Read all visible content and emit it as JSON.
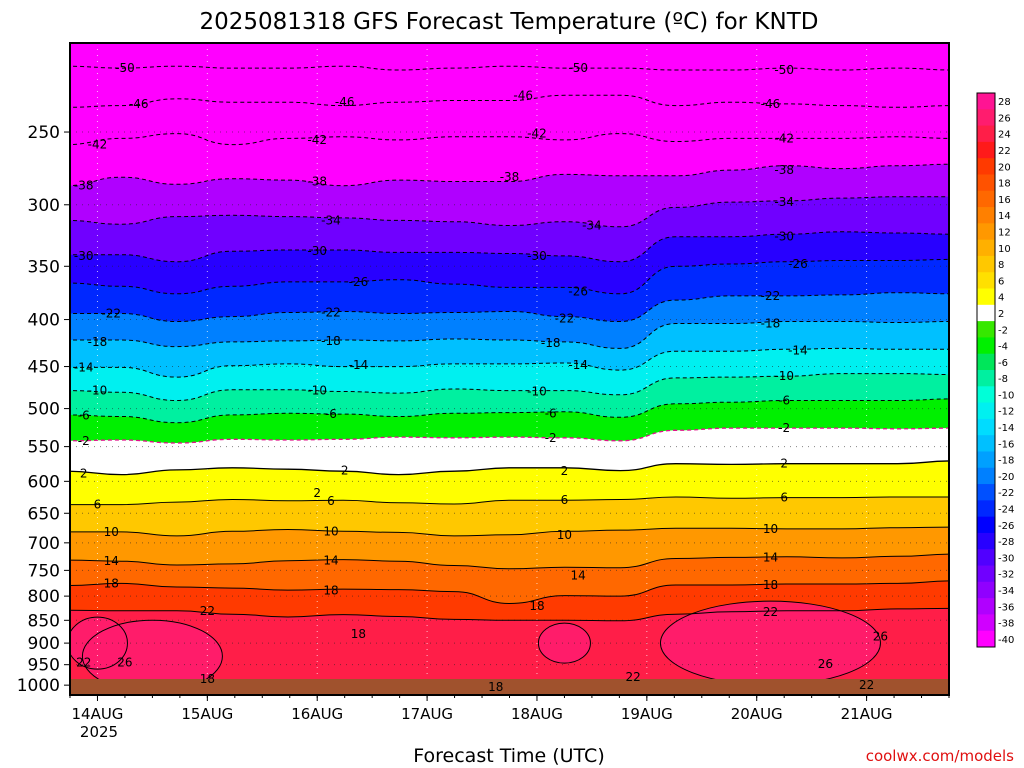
{
  "chart_data": {
    "type": "heatmap",
    "title": "2025081318 GFS Forecast Temperature (ºC) for KNTD",
    "xlabel": "Forecast Time (UTC)",
    "ylabel": "",
    "x_ticks": [
      "14AUG",
      "15AUG",
      "16AUG",
      "17AUG",
      "18AUG",
      "19AUG",
      "20AUG",
      "21AUG"
    ],
    "x_year": "2025",
    "x_range": [
      "2025-08-13T18:00",
      "2025-08-21T18:00"
    ],
    "y_ticks": [
      250,
      300,
      350,
      400,
      450,
      500,
      550,
      600,
      650,
      700,
      750,
      800,
      850,
      900,
      950,
      1000
    ],
    "y_range": [
      200,
      1025
    ],
    "y_scale": "log-pressure",
    "grid": true,
    "credit": "coolwx.com/models",
    "colorbar": {
      "placement": "right",
      "labels": [
        28,
        26,
        24,
        22,
        20,
        18,
        16,
        14,
        12,
        10,
        8,
        6,
        4,
        2,
        -2,
        -4,
        -6,
        -8,
        -10,
        -12,
        -14,
        -16,
        -18,
        -20,
        -22,
        -24,
        -26,
        -28,
        -30,
        -32,
        -34,
        -36,
        -38,
        -40
      ],
      "colors": [
        "#ff1493",
        "#ff1c6e",
        "#ff1e48",
        "#ff1a1a",
        "#ff3a00",
        "#ff5200",
        "#ff6800",
        "#ff8000",
        "#ff9800",
        "#ffb000",
        "#ffc800",
        "#ffe000",
        "#ffff00",
        "#ffffff",
        "#36e800",
        "#00f000",
        "#00e65a",
        "#00f0a0",
        "#00ffd8",
        "#00f0f0",
        "#00dcff",
        "#00c0ff",
        "#00a0ff",
        "#0080ff",
        "#0050ff",
        "#0028ff",
        "#0000ff",
        "#2800ff",
        "#5000ff",
        "#7000ff",
        "#9000ff",
        "#b000ff",
        "#d000ff",
        "#ff00ff"
      ]
    },
    "isotherms": [
      {
        "value": -50,
        "levels": [
          212,
          213,
          212,
          213,
          213,
          212,
          214,
          213,
          212,
          213,
          213,
          214,
          214,
          213,
          214,
          213,
          214
        ]
      },
      {
        "value": -46,
        "levels": [
          235,
          234,
          230,
          232,
          232,
          234,
          232,
          231,
          231,
          228,
          228,
          234,
          232,
          233,
          234,
          235,
          234
        ]
      },
      {
        "value": -42,
        "levels": [
          258,
          254,
          251,
          258,
          254,
          253,
          255,
          253,
          253,
          255,
          251,
          256,
          254,
          254,
          254,
          253,
          254
        ]
      },
      {
        "value": -38,
        "levels": [
          286,
          280,
          285,
          281,
          282,
          286,
          282,
          283,
          283,
          278,
          279,
          279,
          275,
          272,
          274,
          272,
          271
        ]
      },
      {
        "value": -34,
        "levels": [
          312,
          315,
          309,
          308,
          309,
          310,
          312,
          313,
          316,
          313,
          317,
          302,
          298,
          297,
          295,
          294,
          294
        ]
      },
      {
        "value": -30,
        "levels": [
          340,
          340,
          346,
          337,
          336,
          336,
          338,
          338,
          339,
          341,
          346,
          325,
          325,
          323,
          321,
          322,
          323
        ]
      },
      {
        "value": -26,
        "levels": [
          365,
          368,
          375,
          368,
          364,
          364,
          362,
          366,
          369,
          369,
          375,
          350,
          348,
          346,
          345,
          345,
          344
        ]
      },
      {
        "value": -22,
        "levels": [
          394,
          394,
          402,
          397,
          393,
          392,
          394,
          393,
          392,
          397,
          402,
          381,
          377,
          377,
          376,
          374,
          375
        ]
      },
      {
        "value": -18,
        "levels": [
          421,
          421,
          428,
          423,
          422,
          421,
          422,
          420,
          421,
          423,
          430,
          404,
          404,
          402,
          402,
          403,
          402
        ]
      },
      {
        "value": -14,
        "levels": [
          451,
          451,
          462,
          449,
          447,
          450,
          450,
          447,
          447,
          446,
          454,
          433,
          433,
          431,
          430,
          431,
          431
        ]
      },
      {
        "value": -10,
        "levels": [
          478,
          480,
          490,
          477,
          477,
          479,
          481,
          476,
          478,
          478,
          483,
          463,
          462,
          461,
          458,
          458,
          459
        ]
      },
      {
        "value": -6,
        "levels": [
          508,
          510,
          518,
          508,
          506,
          507,
          510,
          506,
          505,
          504,
          511,
          494,
          492,
          490,
          490,
          490,
          488
        ]
      },
      {
        "value": -2,
        "levels": [
          542,
          541,
          545,
          540,
          541,
          540,
          537,
          538,
          537,
          538,
          542,
          528,
          525,
          525,
          525,
          526,
          525
        ]
      },
      {
        "value": 2,
        "levels": [
          585,
          590,
          583,
          580,
          582,
          585,
          590,
          585,
          580,
          580,
          584,
          574,
          575,
          574,
          574,
          574,
          570
        ]
      },
      {
        "value": 6,
        "levels": [
          636,
          636,
          632,
          628,
          630,
          629,
          633,
          635,
          629,
          629,
          628,
          624,
          626,
          625,
          625,
          624,
          624
        ]
      },
      {
        "value": 10,
        "levels": [
          681,
          681,
          688,
          680,
          677,
          680,
          682,
          688,
          686,
          680,
          678,
          675,
          675,
          676,
          676,
          674,
          673
        ]
      },
      {
        "value": 14,
        "levels": [
          731,
          733,
          740,
          738,
          732,
          730,
          733,
          741,
          747,
          744,
          745,
          728,
          726,
          725,
          727,
          724,
          720
        ]
      },
      {
        "value": 18,
        "levels": [
          779,
          775,
          782,
          784,
          788,
          786,
          787,
          791,
          815,
          799,
          800,
          778,
          778,
          776,
          776,
          775,
          770
        ]
      },
      {
        "value": 22,
        "levels": [
          829,
          830,
          830,
          837,
          843,
          838,
          842,
          848,
          850,
          850,
          851,
          837,
          832,
          830,
          830,
          826,
          825
        ]
      }
    ],
    "contour_labels": [
      {
        "text": "-50",
        "x": "2025-08-14T06:00",
        "y": 213
      },
      {
        "text": "-50",
        "x": "2025-08-18T09:00",
        "y": 213
      },
      {
        "text": "-50",
        "x": "2025-08-20T06:00",
        "y": 214
      },
      {
        "text": "-46",
        "x": "2025-08-14T09:00",
        "y": 233
      },
      {
        "text": "-46",
        "x": "2025-08-16T06:00",
        "y": 232
      },
      {
        "text": "-46",
        "x": "2025-08-17T21:00",
        "y": 228
      },
      {
        "text": "-46",
        "x": "2025-08-20T03:00",
        "y": 233
      },
      {
        "text": "-42",
        "x": "2025-08-14T00:00",
        "y": 258
      },
      {
        "text": "-42",
        "x": "2025-08-16T00:00",
        "y": 255
      },
      {
        "text": "-42",
        "x": "2025-08-18T00:00",
        "y": 251
      },
      {
        "text": "-42",
        "x": "2025-08-20T06:00",
        "y": 254
      },
      {
        "text": "-38",
        "x": "2025-08-13T21:00",
        "y": 286
      },
      {
        "text": "-38",
        "x": "2025-08-16T00:00",
        "y": 283
      },
      {
        "text": "-38",
        "x": "2025-08-17T18:00",
        "y": 280
      },
      {
        "text": "-38",
        "x": "2025-08-20T06:00",
        "y": 275
      },
      {
        "text": "-34",
        "x": "2025-08-16T03:00",
        "y": 312
      },
      {
        "text": "-34",
        "x": "2025-08-18T12:00",
        "y": 316
      },
      {
        "text": "-34",
        "x": "2025-08-20T06:00",
        "y": 298
      },
      {
        "text": "-30",
        "x": "2025-08-13T21:00",
        "y": 341
      },
      {
        "text": "-30",
        "x": "2025-08-16T00:00",
        "y": 337
      },
      {
        "text": "-30",
        "x": "2025-08-18T00:00",
        "y": 341
      },
      {
        "text": "-30",
        "x": "2025-08-20T06:00",
        "y": 325
      },
      {
        "text": "-26",
        "x": "2025-08-16T09:00",
        "y": 364
      },
      {
        "text": "-26",
        "x": "2025-08-18T09:00",
        "y": 373
      },
      {
        "text": "-26",
        "x": "2025-08-20T09:00",
        "y": 348
      },
      {
        "text": "-22",
        "x": "2025-08-14T03:00",
        "y": 394
      },
      {
        "text": "-22",
        "x": "2025-08-16T03:00",
        "y": 393
      },
      {
        "text": "-22",
        "x": "2025-08-18T06:00",
        "y": 399
      },
      {
        "text": "-22",
        "x": "2025-08-20T03:00",
        "y": 377
      },
      {
        "text": "-18",
        "x": "2025-08-14T00:00",
        "y": 423
      },
      {
        "text": "-18",
        "x": "2025-08-16T03:00",
        "y": 422
      },
      {
        "text": "-18",
        "x": "2025-08-18T03:00",
        "y": 424
      },
      {
        "text": "-18",
        "x": "2025-08-20T03:00",
        "y": 404
      },
      {
        "text": "-14",
        "x": "2025-08-13T21:00",
        "y": 451
      },
      {
        "text": "-14",
        "x": "2025-08-16T09:00",
        "y": 448
      },
      {
        "text": "-14",
        "x": "2025-08-18T09:00",
        "y": 448
      },
      {
        "text": "-14",
        "x": "2025-08-20T09:00",
        "y": 432
      },
      {
        "text": "-10",
        "x": "2025-08-14T00:00",
        "y": 478
      },
      {
        "text": "-10",
        "x": "2025-08-16T00:00",
        "y": 478
      },
      {
        "text": "-10",
        "x": "2025-08-18T00:00",
        "y": 479
      },
      {
        "text": "-10",
        "x": "2025-08-20T06:00",
        "y": 461
      },
      {
        "text": "-6",
        "x": "2025-08-13T21:00",
        "y": 509
      },
      {
        "text": "-6",
        "x": "2025-08-16T03:00",
        "y": 507
      },
      {
        "text": "-6",
        "x": "2025-08-18T03:00",
        "y": 506
      },
      {
        "text": "-6",
        "x": "2025-08-20T06:00",
        "y": 490
      },
      {
        "text": "-2",
        "x": "2025-08-13T21:00",
        "y": 542
      },
      {
        "text": "-2",
        "x": "2025-08-18T03:00",
        "y": 538
      },
      {
        "text": "-2",
        "x": "2025-08-20T06:00",
        "y": 525
      },
      {
        "text": "2",
        "x": "2025-08-13T21:00",
        "y": 588
      },
      {
        "text": "2",
        "x": "2025-08-16T06:00",
        "y": 584
      },
      {
        "text": "2",
        "x": "2025-08-16T00:00",
        "y": 618
      },
      {
        "text": "2",
        "x": "2025-08-18T06:00",
        "y": 585
      },
      {
        "text": "2",
        "x": "2025-08-20T06:00",
        "y": 574
      },
      {
        "text": "6",
        "x": "2025-08-14T00:00",
        "y": 636
      },
      {
        "text": "6",
        "x": "2025-08-16T03:00",
        "y": 630
      },
      {
        "text": "6",
        "x": "2025-08-18T06:00",
        "y": 629
      },
      {
        "text": "6",
        "x": "2025-08-20T06:00",
        "y": 625
      },
      {
        "text": "10",
        "x": "2025-08-14T03:00",
        "y": 681
      },
      {
        "text": "10",
        "x": "2025-08-16T03:00",
        "y": 680
      },
      {
        "text": "10",
        "x": "2025-08-18T06:00",
        "y": 686
      },
      {
        "text": "10",
        "x": "2025-08-20T03:00",
        "y": 676
      },
      {
        "text": "14",
        "x": "2025-08-14T03:00",
        "y": 733
      },
      {
        "text": "14",
        "x": "2025-08-16T03:00",
        "y": 732
      },
      {
        "text": "14",
        "x": "2025-08-18T09:00",
        "y": 760
      },
      {
        "text": "14",
        "x": "2025-08-20T03:00",
        "y": 726
      },
      {
        "text": "18",
        "x": "2025-08-14T03:00",
        "y": 775
      },
      {
        "text": "18",
        "x": "2025-08-16T03:00",
        "y": 789
      },
      {
        "text": "18",
        "x": "2025-08-18T00:00",
        "y": 820
      },
      {
        "text": "18",
        "x": "2025-08-16T09:00",
        "y": 880
      },
      {
        "text": "18",
        "x": "2025-08-20T03:00",
        "y": 778
      },
      {
        "text": "18",
        "x": "2025-08-15T00:00",
        "y": 985
      },
      {
        "text": "18",
        "x": "2025-08-17T15:00",
        "y": 1005
      },
      {
        "text": "22",
        "x": "2025-08-15T00:00",
        "y": 830
      },
      {
        "text": "22",
        "x": "2025-08-20T03:00",
        "y": 832
      },
      {
        "text": "22",
        "x": "2025-08-13T21:00",
        "y": 945
      },
      {
        "text": "22",
        "x": "2025-08-18T21:00",
        "y": 980
      },
      {
        "text": "22",
        "x": "2025-08-21T00:00",
        "y": 1000
      },
      {
        "text": "26",
        "x": "2025-08-14T06:00",
        "y": 945
      },
      {
        "text": "26",
        "x": "2025-08-20T15:00",
        "y": 948
      },
      {
        "text": "26",
        "x": "2025-08-21T03:00",
        "y": 885
      }
    ]
  }
}
